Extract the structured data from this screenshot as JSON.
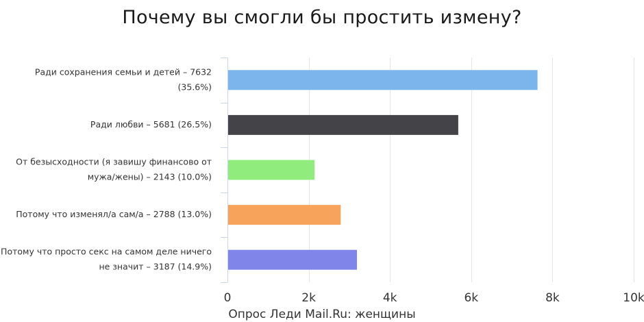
{
  "chart_data": {
    "type": "bar",
    "orientation": "horizontal",
    "title": "Почему вы смогли бы простить измену?",
    "source": "Опрос Леди Mail.Ru: женщины",
    "categories": [
      [
        "Ради сохранения семьи и детей – 7632",
        "(35.6%)"
      ],
      [
        "Ради любви – 5681 (26.5%)"
      ],
      [
        "От безысходности (я завишу финансово от",
        "мужа/жены) – 2143 (10.0%)"
      ],
      [
        "Потому что изменял/а сам/а – 2788 (13.0%)"
      ],
      [
        "Потому что просто секс на самом деле ничего",
        "не значит – 3187 (14.9%)"
      ]
    ],
    "values": [
      7632,
      5681,
      2143,
      2788,
      3187
    ],
    "colors": [
      "#7cb5ec",
      "#434348",
      "#90ed7d",
      "#f7a35c",
      "#8085e9"
    ],
    "xlim": [
      0,
      10000
    ],
    "ticks": [
      0,
      2000,
      4000,
      6000,
      8000,
      10000
    ],
    "tick_labels": [
      "0",
      "2k",
      "4k",
      "6k",
      "8k",
      "10k"
    ],
    "grid": true
  }
}
